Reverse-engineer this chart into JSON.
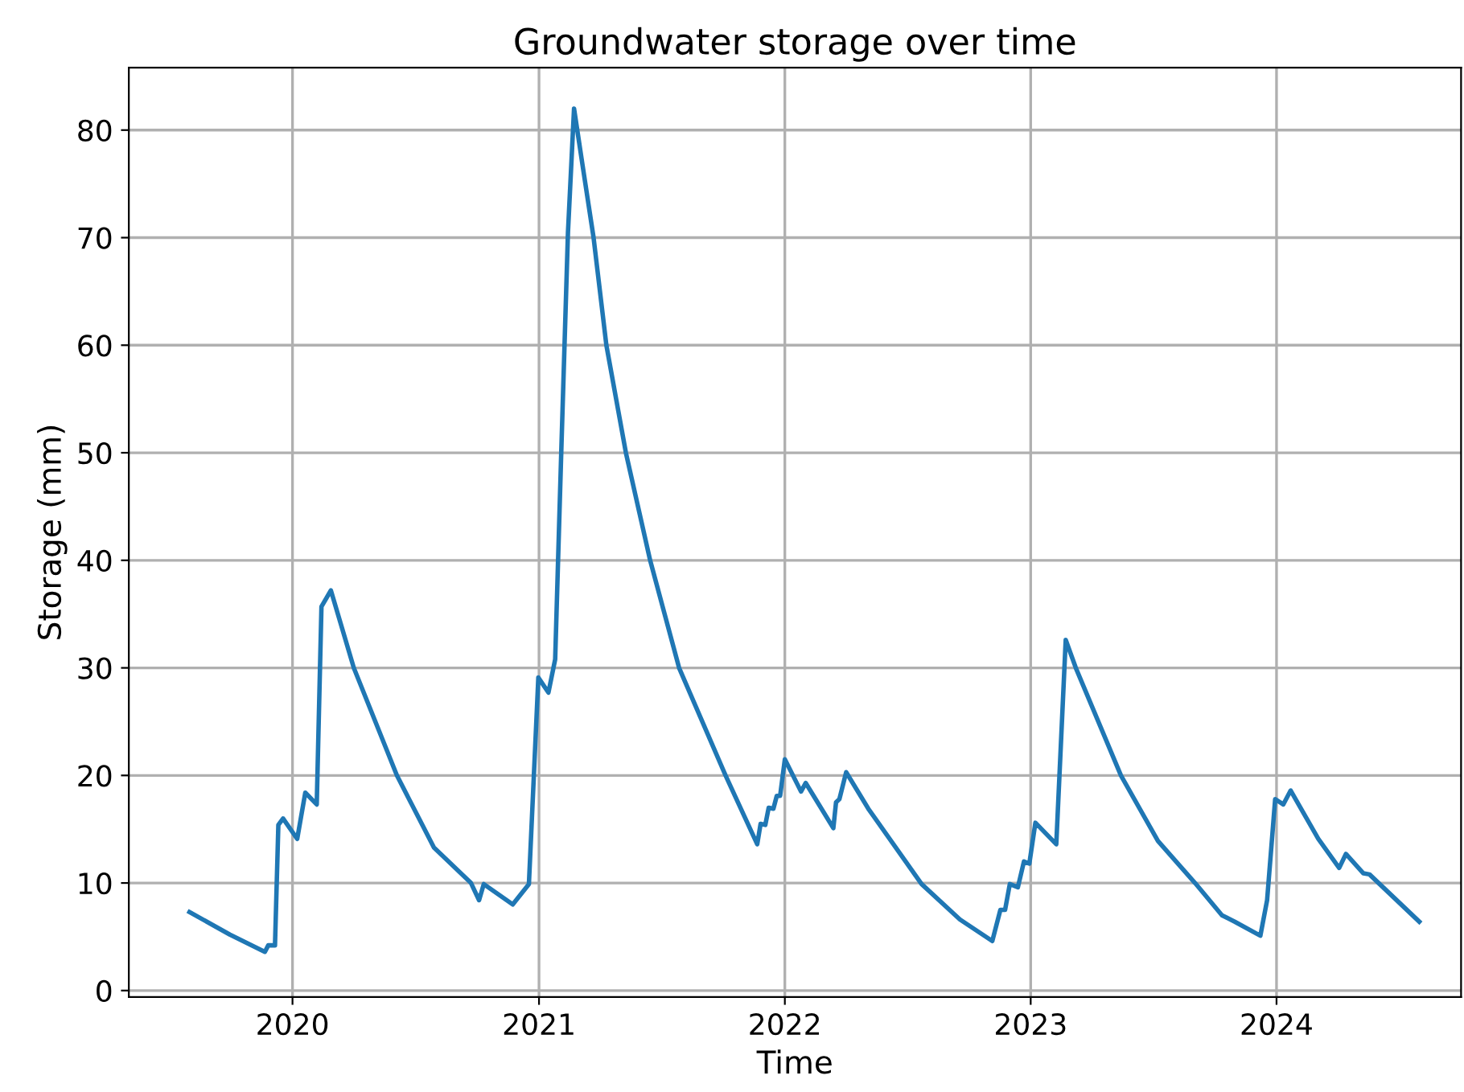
{
  "chart_data": {
    "type": "line",
    "title": "Groundwater storage over time",
    "xlabel": "Time",
    "ylabel": "Storage (mm)",
    "x": [
      "2019-08-01",
      "2019-09-30",
      "2019-11-21",
      "2019-11-26",
      "2019-12-06",
      "2019-12-11",
      "2019-12-18",
      "2020-01-08",
      "2020-01-20",
      "2020-02-06",
      "2020-02-13",
      "2020-02-27",
      "2020-04-01",
      "2020-06-04",
      "2020-07-29",
      "2020-09-22",
      "2020-10-04",
      "2020-10-11",
      "2020-11-23",
      "2020-12-17",
      "2020-12-31",
      "2021-01-15",
      "2021-01-25",
      "2021-02-03",
      "2021-02-13",
      "2021-02-22",
      "2021-03-06",
      "2021-03-23",
      "2021-04-11",
      "2021-05-10",
      "2021-06-15",
      "2021-07-28",
      "2021-10-05",
      "2021-11-21",
      "2021-11-26",
      "2021-12-03",
      "2021-12-08",
      "2021-12-15",
      "2021-12-20",
      "2021-12-25",
      "2022-01-01",
      "2022-01-25",
      "2022-02-01",
      "2022-03-14",
      "2022-03-18",
      "2022-03-23",
      "2022-04-02",
      "2022-05-05",
      "2022-07-23",
      "2022-09-18",
      "2022-11-05",
      "2022-11-17",
      "2022-11-24",
      "2022-12-01",
      "2022-12-13",
      "2022-12-22",
      "2022-12-30",
      "2023-01-08",
      "2023-02-08",
      "2023-02-22",
      "2023-03-09",
      "2023-05-15",
      "2023-07-09",
      "2023-09-02",
      "2023-10-12",
      "2023-10-31",
      "2023-12-08",
      "2023-12-18",
      "2023-12-30",
      "2024-01-11",
      "2024-01-22",
      "2024-03-03",
      "2024-04-03",
      "2024-04-13",
      "2024-05-09",
      "2024-05-18",
      "2024-07-31"
    ],
    "series": [
      {
        "color": "#1f77b4",
        "values": [
          7.3,
          5.2,
          3.6,
          4.2,
          4.2,
          15.4,
          16.0,
          14.1,
          18.4,
          17.3,
          35.7,
          37.2,
          30,
          20,
          13.3,
          10,
          8.4,
          9.9,
          8.0,
          9.9,
          29.1,
          27.7,
          30.8,
          50,
          70.5,
          82,
          77,
          70,
          60,
          50,
          40,
          30,
          20,
          13.6,
          15.5,
          15.4,
          17,
          16.9,
          18.1,
          18.1,
          21.5,
          18.5,
          19.3,
          15.1,
          17.5,
          17.8,
          20.3,
          16.9,
          9.9,
          6.6,
          4.6,
          7.5,
          7.5,
          9.9,
          9.6,
          12.0,
          11.8,
          15.6,
          13.6,
          32.6,
          30,
          20,
          13.9,
          10,
          7.0,
          6.4,
          5.1,
          8.4,
          17.8,
          17.3,
          18.6,
          14.1,
          11.4,
          12.7,
          10.9,
          10.8,
          6.4
        ]
      }
    ],
    "xlim": [
      "2019-05-03",
      "2024-10-01"
    ],
    "xticks": [
      {
        "value": "2020-01-01",
        "label": "2020"
      },
      {
        "value": "2021-01-01",
        "label": "2021"
      },
      {
        "value": "2022-01-01",
        "label": "2022"
      },
      {
        "value": "2023-01-01",
        "label": "2023"
      },
      {
        "value": "2024-01-01",
        "label": "2024"
      }
    ],
    "ylim": [
      -0.6,
      85.8
    ],
    "yticks": [
      0,
      10,
      20,
      30,
      40,
      50,
      60,
      70,
      80
    ],
    "grid": true,
    "marker": "none",
    "line_style": "solid"
  }
}
